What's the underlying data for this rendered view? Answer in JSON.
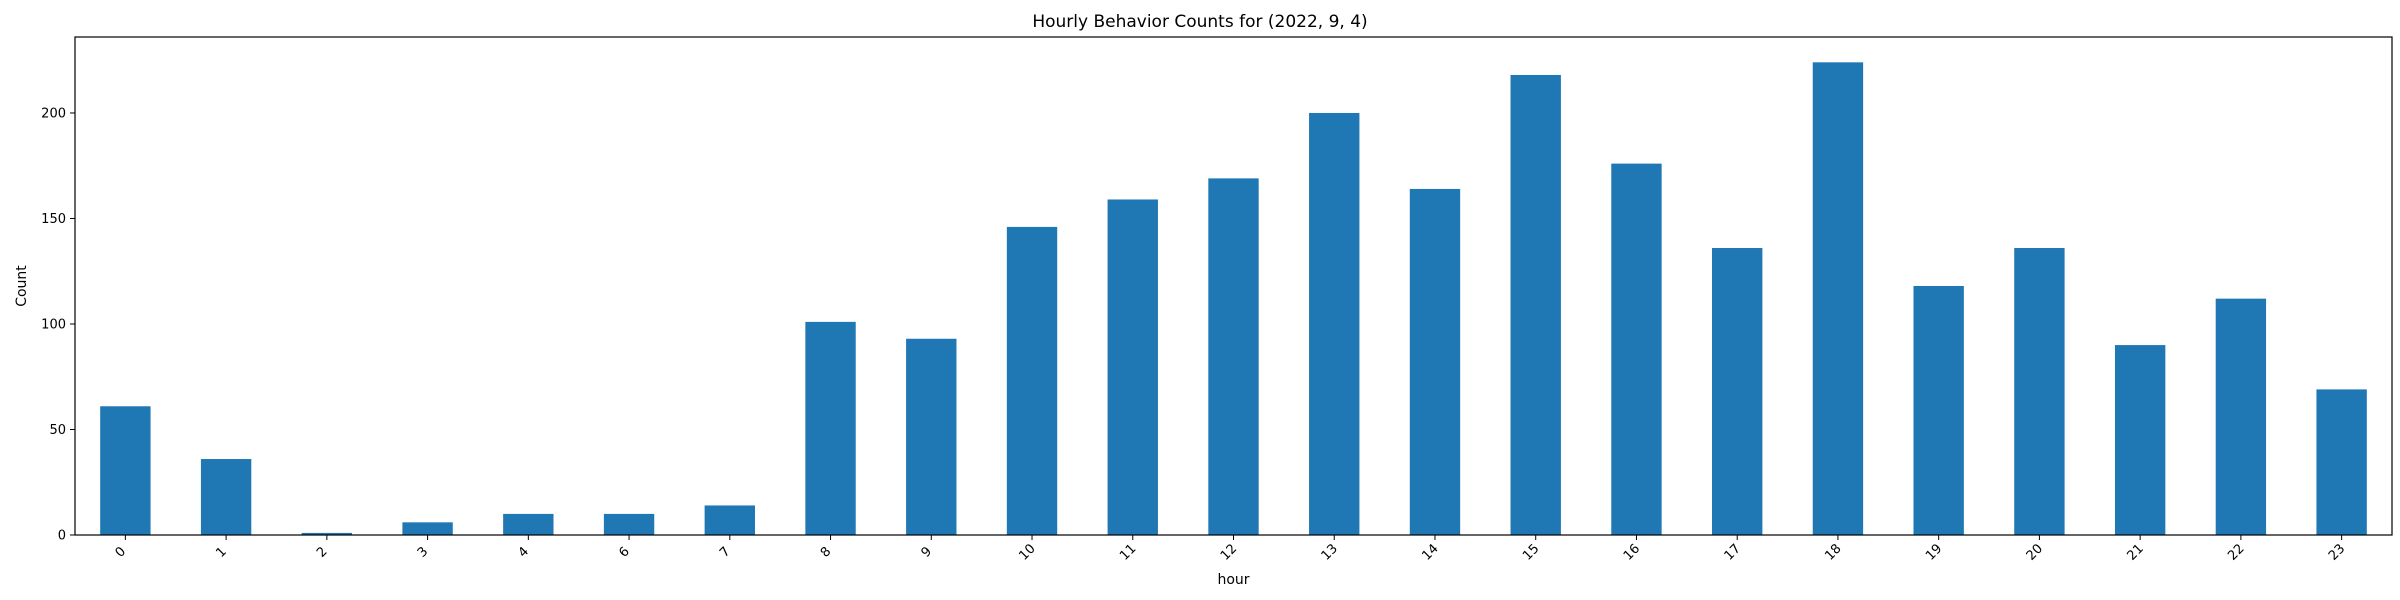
{
  "chart_data": {
    "type": "bar",
    "title": "Hourly Behavior Counts for (2022, 9, 4)",
    "xlabel": "hour",
    "ylabel": "Count",
    "categories": [
      "0",
      "1",
      "2",
      "3",
      "4",
      "6",
      "7",
      "8",
      "9",
      "10",
      "11",
      "12",
      "13",
      "14",
      "15",
      "16",
      "17",
      "18",
      "19",
      "20",
      "21",
      "22",
      "23"
    ],
    "values": [
      61,
      36,
      1,
      6,
      10,
      10,
      14,
      101,
      93,
      146,
      159,
      169,
      200,
      164,
      218,
      176,
      136,
      224,
      118,
      136,
      90,
      112,
      69
    ],
    "ylim": [
      0,
      236
    ],
    "yticks": [
      0,
      50,
      100,
      150,
      200
    ],
    "ytick_labels": [
      "0",
      "50",
      "100",
      "150",
      "200"
    ],
    "bar_color": "#1f77b4",
    "grid": false,
    "legend": "none"
  }
}
